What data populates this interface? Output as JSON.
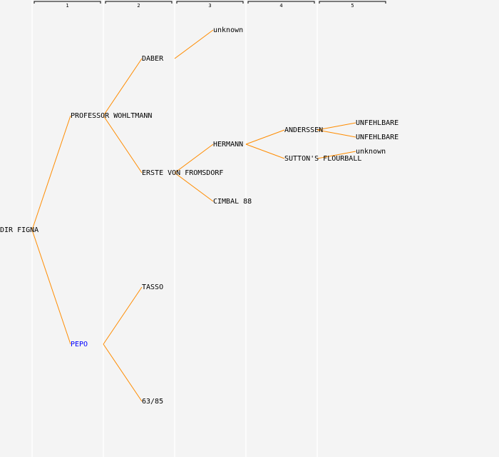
{
  "header": {
    "columns": [
      "1",
      "2",
      "3",
      "4",
      "5"
    ]
  },
  "tree": {
    "label": "DIR FIGNA",
    "children": [
      {
        "label": "PROFESSOR WOHLTMANN",
        "children": [
          {
            "label": "DABER",
            "children": [
              {
                "label": "unknown"
              }
            ]
          },
          {
            "label": "ERSTE VON FROMSDORF",
            "children": [
              {
                "label": "HERMANN",
                "children": [
                  {
                    "label": "ANDERSSEN",
                    "children": [
                      {
                        "label": "UNFEHLBARE"
                      },
                      {
                        "label": "UNFEHLBARE"
                      }
                    ]
                  },
                  {
                    "label": "SUTTON'S FLOURBALL",
                    "children": [
                      {
                        "label": "unknown"
                      }
                    ]
                  }
                ]
              },
              {
                "label": "CIMBAL 88"
              }
            ]
          }
        ]
      },
      {
        "label": "PEPO",
        "color": "#0000ff",
        "children": [
          {
            "label": "TASSO"
          },
          {
            "label": "63/85"
          }
        ]
      }
    ]
  }
}
